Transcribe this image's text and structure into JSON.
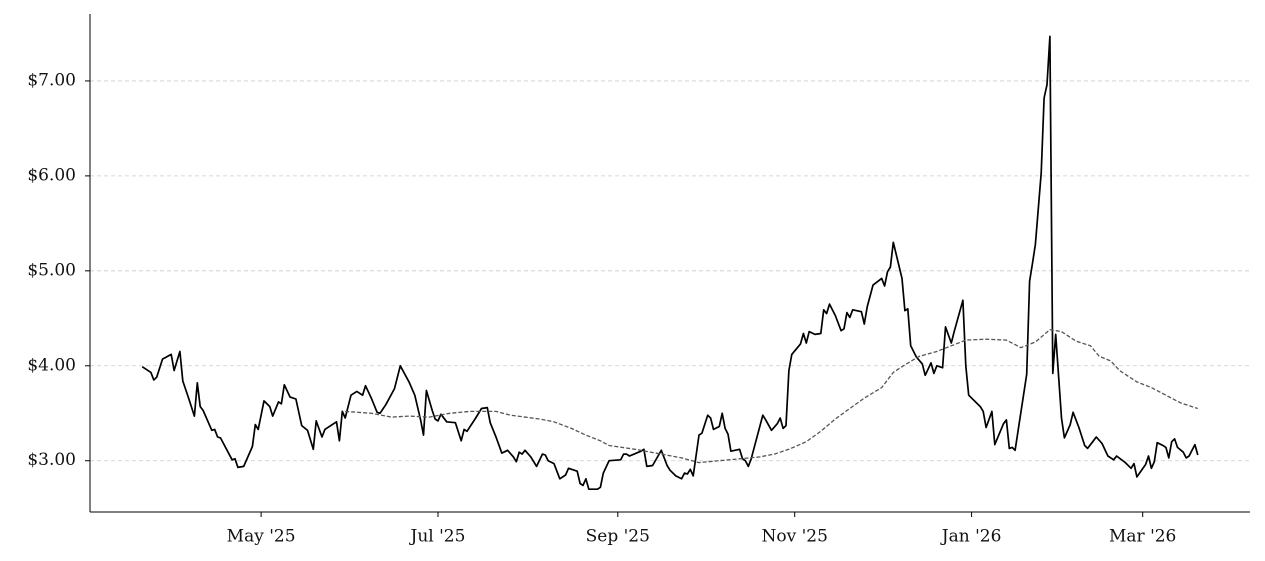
{
  "chart_data": {
    "type": "line",
    "xlim": [
      61,
      461
    ],
    "xticks": [
      {
        "value": 120,
        "label": "May '25"
      },
      {
        "value": 181,
        "label": "Jul '25"
      },
      {
        "value": 243,
        "label": "Sep '25"
      },
      {
        "value": 304,
        "label": "Nov '25"
      },
      {
        "value": 365,
        "label": "Jan '26"
      },
      {
        "value": 424,
        "label": "Mar '26"
      }
    ],
    "ylim": [
      2.46,
      7.705
    ],
    "yticks": [
      {
        "value": 3,
        "label": "$3.00"
      },
      {
        "value": 4,
        "label": "$4.00"
      },
      {
        "value": 5,
        "label": "$5.00"
      },
      {
        "value": 6,
        "label": "$6.00"
      },
      {
        "value": 7,
        "label": "$7.00"
      }
    ],
    "grid": true,
    "series": [
      {
        "color": "#000000",
        "style": "solid",
        "x": [
          79,
          82,
          83,
          84,
          86,
          89,
          90,
          92,
          93,
          95,
          97,
          98,
          99,
          100,
          103,
          104,
          105,
          106,
          110,
          111,
          112,
          114,
          117,
          118,
          119,
          121,
          123,
          124,
          126,
          127,
          128,
          130,
          132,
          134,
          136,
          138,
          139,
          141,
          142,
          146,
          147,
          148,
          149,
          151,
          153,
          155,
          156,
          158,
          160,
          161,
          163,
          166,
          168,
          171,
          173,
          175,
          176,
          177,
          179,
          180,
          181,
          182,
          184,
          187,
          189,
          190,
          191,
          194,
          196,
          198,
          199,
          201,
          203,
          205,
          207,
          208,
          209,
          210,
          211,
          213,
          215,
          217,
          218,
          219,
          221,
          223,
          225,
          226,
          229,
          230,
          231,
          232,
          233,
          236,
          237,
          238,
          240,
          244,
          245,
          246,
          247,
          251,
          252,
          253,
          255,
          258,
          260,
          261,
          263,
          265,
          266,
          267,
          268,
          269,
          271,
          272,
          274,
          275,
          276,
          278,
          279,
          280,
          281,
          282,
          285,
          286,
          287,
          288,
          289,
          293,
          294,
          296,
          298,
          299,
          300,
          301,
          302,
          303,
          306,
          307,
          308,
          309,
          311,
          313,
          314,
          315,
          316,
          318,
          320,
          321,
          322,
          323,
          324,
          327,
          328,
          329,
          331,
          334,
          335,
          336,
          337,
          338,
          341,
          342,
          343,
          344,
          346,
          348,
          349,
          351,
          352,
          353,
          355,
          356,
          358,
          359,
          362,
          363,
          364,
          368,
          369,
          370,
          372,
          373,
          376,
          377,
          378,
          379,
          380,
          384,
          385,
          386,
          387,
          389,
          390,
          391,
          392,
          393,
          394,
          395,
          396,
          397,
          399,
          400,
          402,
          404,
          405,
          407,
          408,
          410,
          412,
          414,
          415,
          418,
          420,
          421,
          422,
          425,
          426,
          427,
          428,
          429,
          431,
          432,
          433,
          434,
          435,
          436,
          438,
          439,
          440,
          442,
          443
        ],
        "values": [
          3.99,
          3.93,
          3.85,
          3.88,
          4.07,
          4.12,
          3.95,
          4.15,
          3.84,
          3.66,
          3.47,
          3.82,
          3.57,
          3.53,
          3.32,
          3.33,
          3.25,
          3.24,
          3.01,
          3.02,
          2.93,
          2.94,
          3.15,
          3.38,
          3.33,
          3.63,
          3.57,
          3.47,
          3.62,
          3.6,
          3.8,
          3.67,
          3.65,
          3.37,
          3.32,
          3.12,
          3.42,
          3.25,
          3.33,
          3.41,
          3.21,
          3.52,
          3.45,
          3.69,
          3.73,
          3.69,
          3.79,
          3.66,
          3.51,
          3.5,
          3.59,
          3.76,
          4.0,
          3.83,
          3.69,
          3.43,
          3.27,
          3.74,
          3.53,
          3.44,
          3.42,
          3.49,
          3.41,
          3.4,
          3.21,
          3.33,
          3.31,
          3.45,
          3.55,
          3.56,
          3.4,
          3.25,
          3.08,
          3.11,
          3.04,
          2.99,
          3.09,
          3.07,
          3.11,
          3.04,
          2.94,
          3.07,
          3.06,
          3.0,
          2.97,
          2.81,
          2.85,
          2.92,
          2.89,
          2.76,
          2.74,
          2.81,
          2.7,
          2.7,
          2.72,
          2.87,
          3.0,
          3.01,
          3.07,
          3.07,
          3.05,
          3.1,
          3.12,
          2.94,
          2.95,
          3.11,
          2.95,
          2.9,
          2.84,
          2.81,
          2.87,
          2.86,
          2.91,
          2.84,
          3.27,
          3.29,
          3.48,
          3.45,
          3.33,
          3.36,
          3.5,
          3.34,
          3.28,
          3.1,
          3.12,
          3.02,
          3.0,
          2.94,
          3.02,
          3.48,
          3.43,
          3.32,
          3.39,
          3.45,
          3.34,
          3.37,
          3.95,
          4.12,
          4.23,
          4.34,
          4.24,
          4.36,
          4.33,
          4.34,
          4.59,
          4.55,
          4.65,
          4.53,
          4.37,
          4.39,
          4.56,
          4.51,
          4.59,
          4.57,
          4.44,
          4.62,
          4.85,
          4.92,
          4.84,
          4.99,
          5.04,
          5.3,
          4.92,
          4.58,
          4.6,
          4.21,
          4.09,
          4.02,
          3.9,
          4.03,
          3.92,
          4.0,
          3.98,
          4.41,
          4.24,
          4.36,
          4.69,
          4.0,
          3.69,
          3.57,
          3.52,
          3.35,
          3.52,
          3.17,
          3.39,
          3.43,
          3.13,
          3.14,
          3.11,
          3.91,
          4.89,
          5.08,
          5.28,
          6.03,
          6.82,
          6.96,
          7.47,
          3.92,
          4.33,
          3.89,
          3.45,
          3.24,
          3.38,
          3.51,
          3.35,
          3.16,
          3.13,
          3.21,
          3.25,
          3.18,
          3.05,
          3.01,
          3.05,
          2.98,
          2.92,
          2.97,
          2.83,
          2.96,
          3.05,
          2.92,
          2.99,
          3.19,
          3.16,
          3.14,
          3.03,
          3.2,
          3.23,
          3.14,
          3.09,
          3.03,
          3.05,
          3.17,
          3.06
        ]
      },
      {
        "color": "#555555",
        "style": "dashed",
        "x": [
          149,
          158,
          165,
          171,
          178,
          185,
          192,
          201,
          206,
          216,
          221,
          227,
          232,
          237,
          240,
          249,
          258,
          265,
          271,
          278,
          285,
          292,
          297,
          302,
          308,
          313,
          318,
          323,
          328,
          334,
          338,
          342,
          347,
          353,
          358,
          363,
          370,
          377,
          382,
          387,
          392,
          396,
          401,
          406,
          409,
          413,
          416,
          422,
          427,
          432,
          437,
          443
        ],
        "values": [
          3.52,
          3.5,
          3.46,
          3.47,
          3.46,
          3.5,
          3.52,
          3.52,
          3.48,
          3.44,
          3.41,
          3.34,
          3.27,
          3.21,
          3.16,
          3.12,
          3.07,
          3.03,
          2.98,
          3.0,
          3.02,
          3.04,
          3.07,
          3.12,
          3.2,
          3.31,
          3.44,
          3.55,
          3.66,
          3.77,
          3.93,
          4.01,
          4.1,
          4.15,
          4.21,
          4.27,
          4.28,
          4.27,
          4.19,
          4.25,
          4.38,
          4.36,
          4.26,
          4.21,
          4.1,
          4.05,
          3.95,
          3.83,
          3.77,
          3.69,
          3.61,
          3.55
        ]
      }
    ]
  }
}
